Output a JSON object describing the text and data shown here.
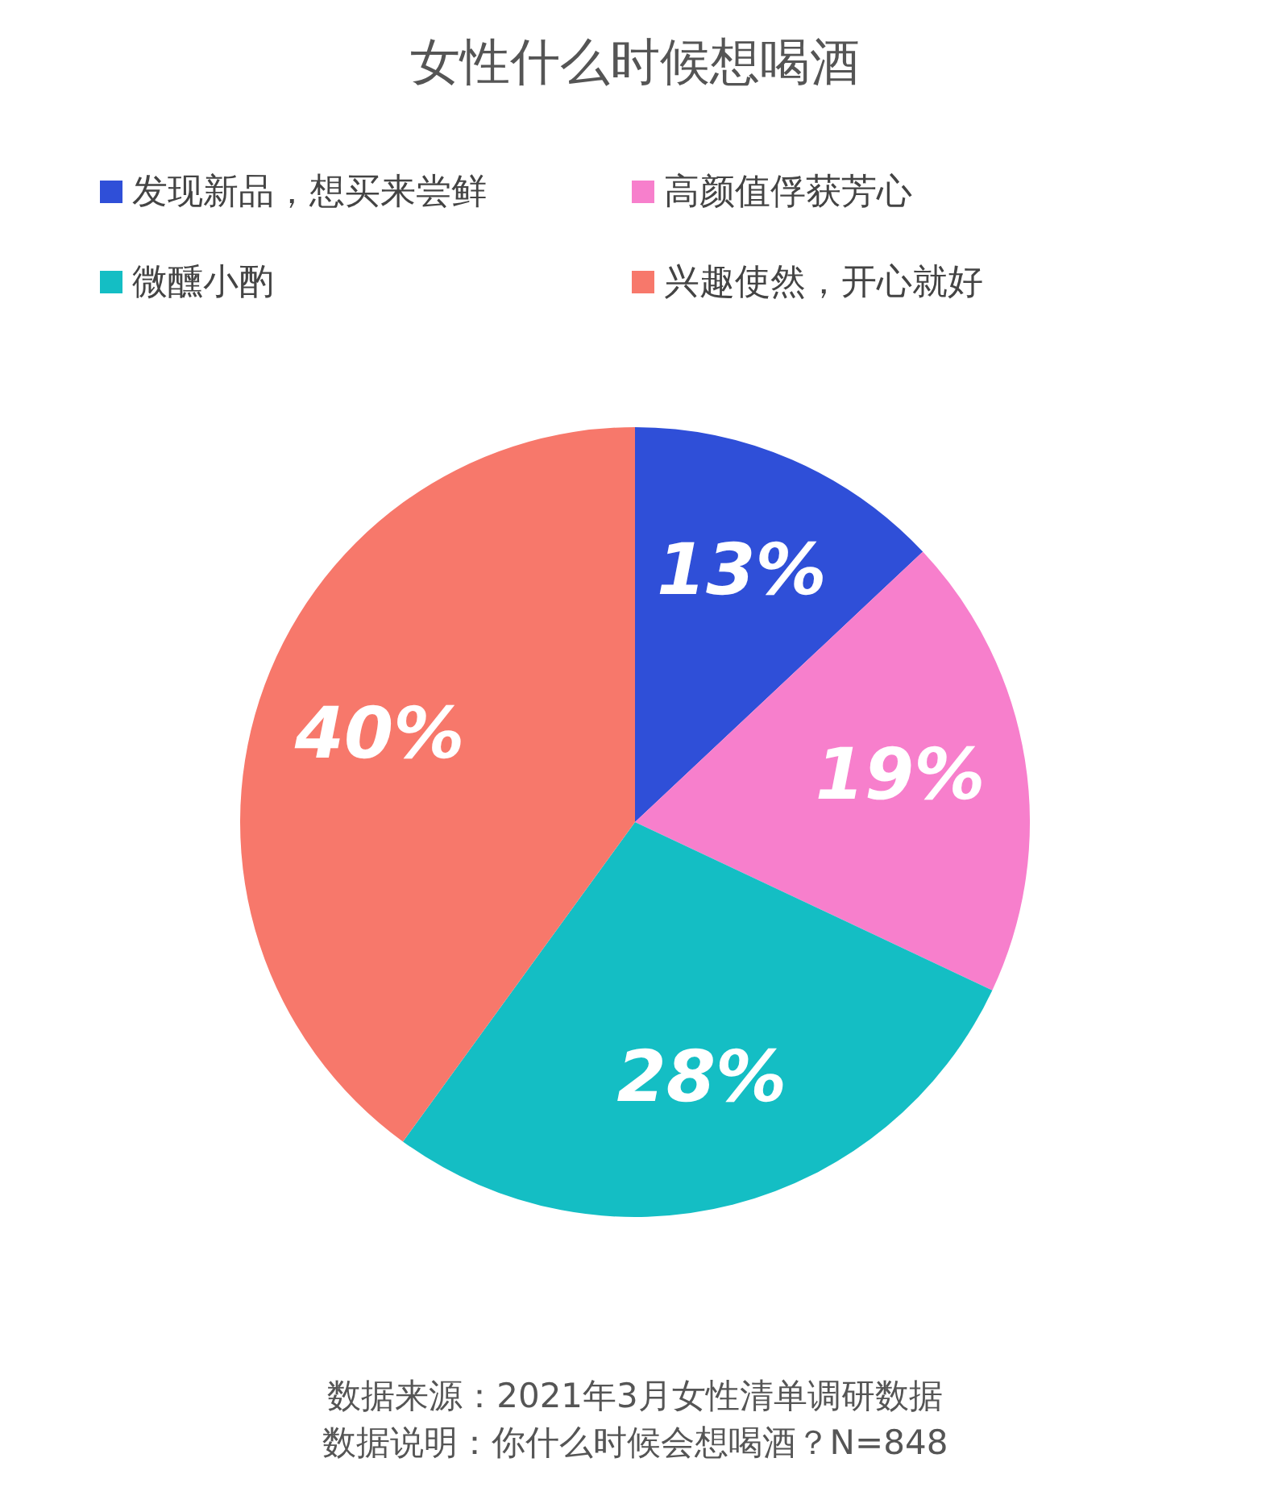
{
  "chart_data": {
    "type": "pie",
    "title": "女性什么时候想喝酒",
    "categories": [
      "发现新品，想买来尝鲜",
      "高颜值俘获芳心",
      "微醺小酌",
      "兴趣使然，开心就好"
    ],
    "values": [
      13,
      19,
      28,
      40
    ],
    "colors": [
      "#2f4fd8",
      "#f77fcc",
      "#14bec4",
      "#f7786b"
    ],
    "value_labels": [
      "13%",
      "19%",
      "28%",
      "40%"
    ],
    "legend": "top",
    "annotations": [
      "数据来源：2021年3月女性清单调研数据",
      "数据说明：你什么时候会想喝酒？N=848"
    ]
  }
}
